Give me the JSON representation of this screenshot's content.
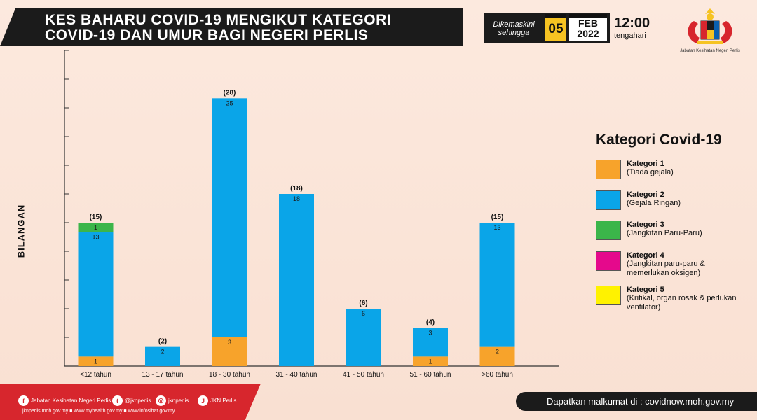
{
  "header": {
    "title_line1": "KES BAHARU COVID-19 MENGIKUT KATEGORI",
    "title_line2": "COVID-19 DAN UMUR BAGI NEGERI PERLIS",
    "updated_label_1": "Dikemaskini",
    "updated_label_2": "sehingga",
    "day": "05",
    "month": "FEB",
    "year": "2022",
    "time": "12:00",
    "time_label": "tengahari",
    "org_name": "Jabatan Kesihatan Negeri Perlis"
  },
  "legend": {
    "title": "Kategori Covid-19",
    "items": [
      {
        "name": "Kategori 1",
        "desc": "(Tiada gejala)",
        "color": "#f7a32b"
      },
      {
        "name": "Kategori 2",
        "desc": "(Gejala Ringan)",
        "color": "#0aa5e8"
      },
      {
        "name": "Kategori 3",
        "desc": "(Jangkitan Paru-Paru)",
        "color": "#3bb54a"
      },
      {
        "name": "Kategori 4",
        "desc": "(Jangkitan paru-paru & memerlukan oksigen)",
        "color": "#e5098c"
      },
      {
        "name": "Kategori 5",
        "desc": "(Kritikal, organ rosak & perlukan ventilator)",
        "color": "#fff200"
      }
    ]
  },
  "chart_data": {
    "type": "bar",
    "stacked": true,
    "ylabel": "BILANGAN",
    "ylim": [
      0,
      33
    ],
    "tick_step": 3,
    "categories": [
      "<12 tahun",
      "13 - 17 tahun",
      "18 - 30 tahun",
      "31 - 40 tahun",
      "41 - 50 tahun",
      "51 - 60 tahun",
      ">60 tahun"
    ],
    "totals": [
      15,
      2,
      28,
      18,
      6,
      4,
      15
    ],
    "series": [
      {
        "name": "Kategori 1",
        "color": "#f7a32b",
        "values": [
          1,
          0,
          3,
          0,
          0,
          1,
          2
        ]
      },
      {
        "name": "Kategori 2",
        "color": "#0aa5e8",
        "values": [
          13,
          2,
          25,
          18,
          6,
          3,
          13
        ]
      },
      {
        "name": "Kategori 3",
        "color": "#3bb54a",
        "values": [
          1,
          0,
          0,
          0,
          0,
          0,
          0
        ]
      },
      {
        "name": "Kategori 4",
        "color": "#e5098c",
        "values": [
          0,
          0,
          0,
          0,
          0,
          0,
          0
        ]
      },
      {
        "name": "Kategori 5",
        "color": "#fff200",
        "values": [
          0,
          0,
          0,
          0,
          0,
          0,
          0
        ]
      }
    ]
  },
  "footer": {
    "social": [
      {
        "icon": "facebook-icon",
        "glyph": "f",
        "label": "Jabatan Kesihatan Negeri Perlis"
      },
      {
        "icon": "twitter-icon",
        "glyph": "t",
        "label": "@jknperlis"
      },
      {
        "icon": "instagram-icon",
        "glyph": "◎",
        "label": "jknperlis"
      },
      {
        "icon": "jkn-icon",
        "glyph": "J",
        "label": "JKN Perlis"
      }
    ],
    "links": "jknperlis.moh.gov.my ■ www.myhealth.gov.my ■ www.infosihat.gov.my",
    "info": "Dapatkan malkumat di : covidnow.moh.gov.my"
  }
}
